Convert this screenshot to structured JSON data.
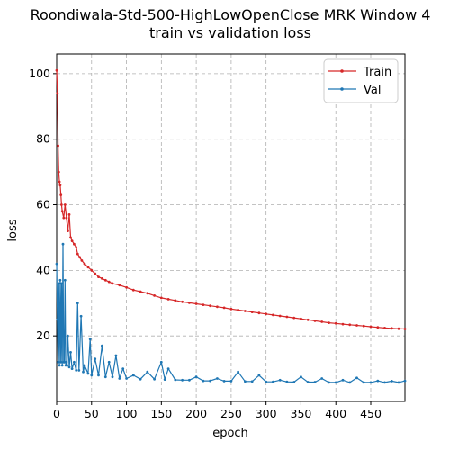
{
  "chart_data": {
    "type": "line",
    "title": "Roondiwala-Std-500-HighLowOpenClose MRK Window 4",
    "subtitle": "train vs validation loss",
    "xlabel": "epoch",
    "ylabel": "loss",
    "xlim": [
      0,
      499
    ],
    "ylim": [
      0,
      106
    ],
    "x_ticks": [
      0,
      50,
      100,
      150,
      200,
      250,
      300,
      350,
      400,
      450
    ],
    "y_ticks": [
      20,
      40,
      60,
      80,
      100
    ],
    "grid": true,
    "legend_position": "top-right",
    "series": [
      {
        "name": "Train",
        "color": "#d62728",
        "points": [
          [
            0,
            101
          ],
          [
            1,
            94
          ],
          [
            2,
            78
          ],
          [
            3,
            70
          ],
          [
            4,
            67
          ],
          [
            5,
            66
          ],
          [
            6,
            63
          ],
          [
            7,
            60
          ],
          [
            8,
            58
          ],
          [
            10,
            56
          ],
          [
            12,
            60
          ],
          [
            14,
            56
          ],
          [
            16,
            52
          ],
          [
            18,
            57
          ],
          [
            20,
            50
          ],
          [
            22,
            49
          ],
          [
            25,
            48
          ],
          [
            28,
            47
          ],
          [
            30,
            45
          ],
          [
            33,
            44
          ],
          [
            36,
            43
          ],
          [
            40,
            42
          ],
          [
            45,
            41
          ],
          [
            50,
            40
          ],
          [
            55,
            39
          ],
          [
            60,
            38
          ],
          [
            65,
            37.5
          ],
          [
            70,
            37
          ],
          [
            75,
            36.5
          ],
          [
            80,
            36
          ],
          [
            90,
            35.5
          ],
          [
            100,
            34.8
          ],
          [
            110,
            34
          ],
          [
            120,
            33.5
          ],
          [
            130,
            33
          ],
          [
            140,
            32.3
          ],
          [
            150,
            31.6
          ],
          [
            160,
            31.2
          ],
          [
            170,
            30.8
          ],
          [
            180,
            30.4
          ],
          [
            190,
            30.1
          ],
          [
            200,
            29.8
          ],
          [
            210,
            29.5
          ],
          [
            220,
            29.2
          ],
          [
            230,
            28.9
          ],
          [
            240,
            28.6
          ],
          [
            250,
            28.2
          ],
          [
            260,
            27.9
          ],
          [
            270,
            27.6
          ],
          [
            280,
            27.3
          ],
          [
            290,
            27.0
          ],
          [
            300,
            26.7
          ],
          [
            310,
            26.4
          ],
          [
            320,
            26.1
          ],
          [
            330,
            25.8
          ],
          [
            340,
            25.5
          ],
          [
            350,
            25.2
          ],
          [
            360,
            24.9
          ],
          [
            370,
            24.6
          ],
          [
            380,
            24.3
          ],
          [
            390,
            24.0
          ],
          [
            400,
            23.8
          ],
          [
            410,
            23.6
          ],
          [
            420,
            23.4
          ],
          [
            430,
            23.2
          ],
          [
            440,
            23.0
          ],
          [
            450,
            22.8
          ],
          [
            460,
            22.6
          ],
          [
            470,
            22.4
          ],
          [
            480,
            22.3
          ],
          [
            490,
            22.2
          ],
          [
            499,
            22.1
          ]
        ]
      },
      {
        "name": "Val",
        "color": "#1f77b4",
        "points": [
          [
            0,
            42
          ],
          [
            1,
            25
          ],
          [
            2,
            12
          ],
          [
            3,
            36
          ],
          [
            4,
            11
          ],
          [
            5,
            37
          ],
          [
            6,
            12
          ],
          [
            7,
            36
          ],
          [
            8,
            11
          ],
          [
            9,
            48
          ],
          [
            10,
            12
          ],
          [
            11,
            12
          ],
          [
            12,
            37
          ],
          [
            13,
            11
          ],
          [
            14,
            12
          ],
          [
            15,
            11
          ],
          [
            16,
            20
          ],
          [
            18,
            10.5
          ],
          [
            20,
            15
          ],
          [
            22,
            10
          ],
          [
            25,
            12
          ],
          [
            28,
            9.5
          ],
          [
            30,
            30
          ],
          [
            32,
            9.5
          ],
          [
            35,
            26
          ],
          [
            38,
            9
          ],
          [
            40,
            11
          ],
          [
            45,
            8.5
          ],
          [
            48,
            19
          ],
          [
            50,
            8
          ],
          [
            55,
            13
          ],
          [
            60,
            8
          ],
          [
            65,
            17
          ],
          [
            70,
            7.5
          ],
          [
            75,
            12
          ],
          [
            80,
            7.5
          ],
          [
            85,
            14
          ],
          [
            90,
            7
          ],
          [
            95,
            10
          ],
          [
            100,
            7
          ],
          [
            110,
            8
          ],
          [
            120,
            6.8
          ],
          [
            130,
            9
          ],
          [
            140,
            6.8
          ],
          [
            150,
            12
          ],
          [
            155,
            6.7
          ],
          [
            160,
            10
          ],
          [
            170,
            6.6
          ],
          [
            180,
            6.5
          ],
          [
            190,
            6.5
          ],
          [
            200,
            7.5
          ],
          [
            210,
            6.3
          ],
          [
            220,
            6.3
          ],
          [
            230,
            7
          ],
          [
            240,
            6.2
          ],
          [
            250,
            6.2
          ],
          [
            260,
            9
          ],
          [
            270,
            6.1
          ],
          [
            280,
            6.1
          ],
          [
            290,
            8
          ],
          [
            300,
            6
          ],
          [
            310,
            6
          ],
          [
            320,
            6.5
          ],
          [
            330,
            6
          ],
          [
            340,
            5.9
          ],
          [
            350,
            7.5
          ],
          [
            360,
            5.9
          ],
          [
            370,
            5.9
          ],
          [
            380,
            7
          ],
          [
            390,
            5.8
          ],
          [
            400,
            5.8
          ],
          [
            410,
            6.5
          ],
          [
            420,
            5.8
          ],
          [
            430,
            7.2
          ],
          [
            440,
            5.8
          ],
          [
            450,
            5.8
          ],
          [
            460,
            6.3
          ],
          [
            470,
            5.8
          ],
          [
            480,
            6.2
          ],
          [
            490,
            5.8
          ],
          [
            499,
            6.3
          ]
        ]
      }
    ]
  }
}
